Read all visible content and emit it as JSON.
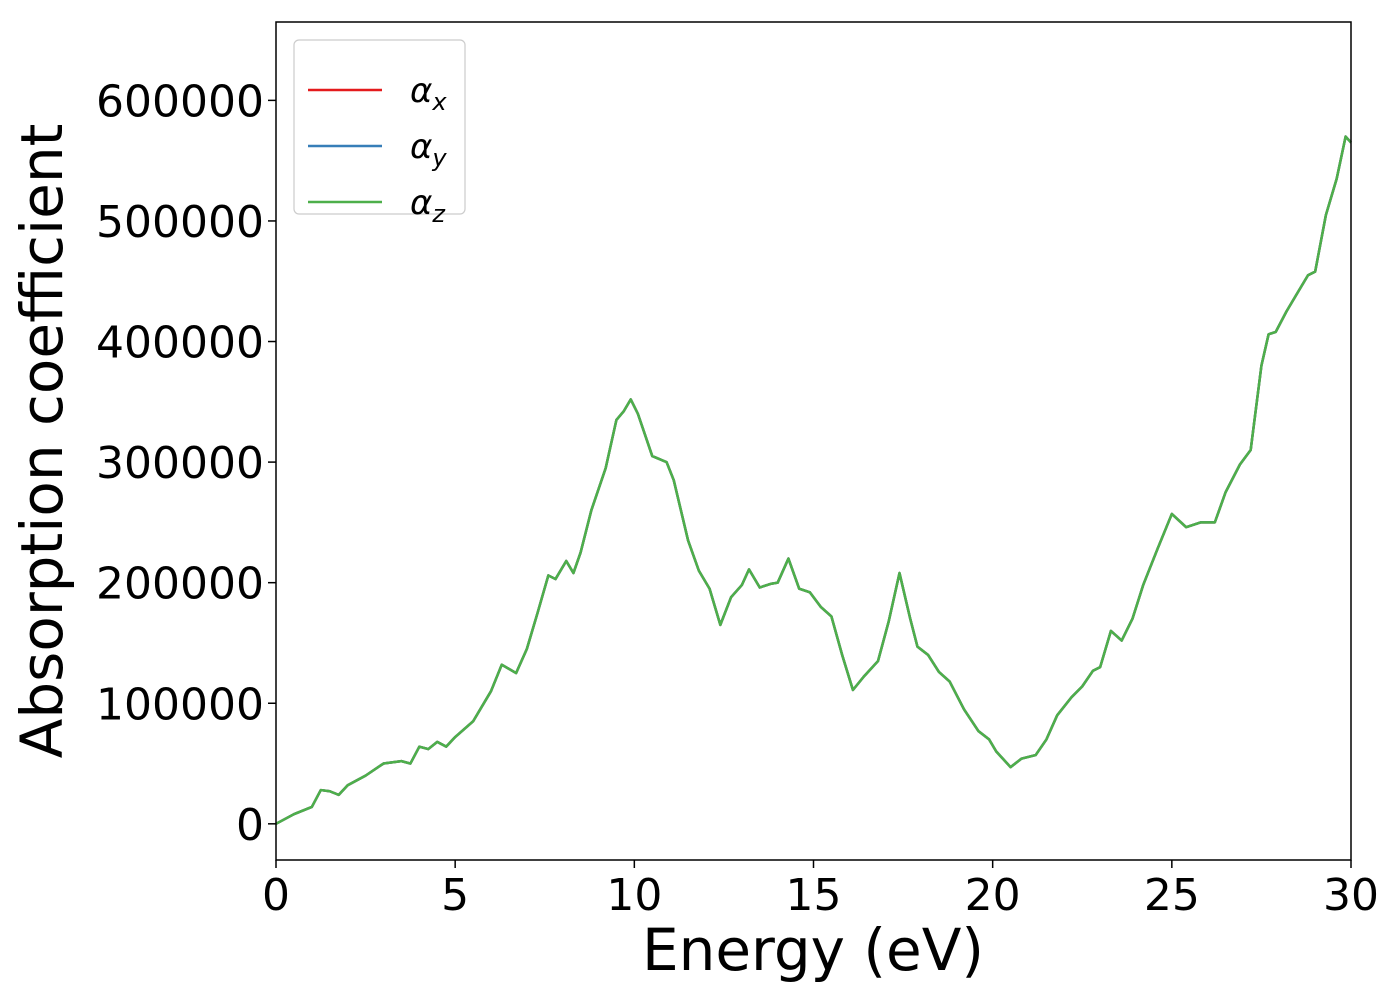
{
  "chart_data": {
    "type": "line",
    "xlabel": "Energy (eV)",
    "ylabel": "Absorption coefficient",
    "x": [
      0,
      0.5,
      1,
      1.25,
      1.5,
      1.75,
      2,
      2.5,
      3,
      3.5,
      3.75,
      4,
      4.25,
      4.5,
      4.75,
      5,
      5.5,
      6,
      6.3,
      6.7,
      7,
      7.3,
      7.6,
      7.8,
      8.1,
      8.3,
      8.5,
      8.8,
      9.2,
      9.5,
      9.7,
      9.9,
      10.1,
      10.5,
      10.9,
      11.1,
      11.5,
      11.8,
      12.1,
      12.4,
      12.7,
      13,
      13.2,
      13.5,
      13.8,
      14,
      14.3,
      14.6,
      14.9,
      15.2,
      15.5,
      15.8,
      16.1,
      16.4,
      16.8,
      17.1,
      17.4,
      17.7,
      17.9,
      18.2,
      18.5,
      18.8,
      19.2,
      19.6,
      19.9,
      20.1,
      20.5,
      20.8,
      21.2,
      21.5,
      21.8,
      22.2,
      22.5,
      22.8,
      23,
      23.3,
      23.6,
      23.9,
      24.2,
      24.6,
      25,
      25.4,
      25.8,
      26.2,
      26.5,
      26.9,
      27.2,
      27.5,
      27.7,
      27.9,
      28.2,
      28.5,
      28.8,
      29,
      29.3,
      29.6,
      29.85,
      30
    ],
    "series": [
      {
        "name": "αx",
        "color": "#e41a1c",
        "values": [
          0,
          8000,
          14000,
          28000,
          27000,
          24000,
          32000,
          40000,
          50000,
          52000,
          50000,
          64000,
          62000,
          68000,
          64000,
          72000,
          85000,
          110000,
          132000,
          125000,
          145000,
          175000,
          206000,
          203000,
          218000,
          208000,
          225000,
          260000,
          295000,
          335000,
          342000,
          352000,
          340000,
          305000,
          300000,
          285000,
          235000,
          210000,
          195000,
          165000,
          188000,
          198000,
          211000,
          196000,
          199000,
          200000,
          220000,
          195000,
          192000,
          180000,
          172000,
          140000,
          111000,
          122000,
          135000,
          168000,
          208000,
          170000,
          147000,
          140000,
          126000,
          118000,
          95000,
          77000,
          70000,
          60000,
          47000,
          54000,
          57000,
          70000,
          90000,
          105000,
          114000,
          127000,
          130000,
          160000,
          152000,
          170000,
          198000,
          228000,
          257000,
          246000,
          250000,
          250000,
          275000,
          298000,
          310000,
          380000,
          406000,
          408000,
          425000,
          440000,
          455000,
          458000,
          505000,
          535000,
          570000,
          565000
        ]
      },
      {
        "name": "αy",
        "color": "#377eb8",
        "values": [
          0,
          8000,
          14000,
          28000,
          27000,
          24000,
          32000,
          40000,
          50000,
          52000,
          50000,
          64000,
          62000,
          68000,
          64000,
          72000,
          85000,
          110000,
          132000,
          125000,
          145000,
          175000,
          206000,
          203000,
          218000,
          208000,
          225000,
          260000,
          295000,
          335000,
          342000,
          352000,
          340000,
          305000,
          300000,
          285000,
          235000,
          210000,
          195000,
          165000,
          188000,
          198000,
          211000,
          196000,
          199000,
          200000,
          220000,
          195000,
          192000,
          180000,
          172000,
          140000,
          111000,
          122000,
          135000,
          168000,
          208000,
          170000,
          147000,
          140000,
          126000,
          118000,
          95000,
          77000,
          70000,
          60000,
          47000,
          54000,
          57000,
          70000,
          90000,
          105000,
          114000,
          127000,
          130000,
          160000,
          152000,
          170000,
          198000,
          228000,
          257000,
          246000,
          250000,
          250000,
          275000,
          298000,
          310000,
          380000,
          406000,
          408000,
          425000,
          440000,
          455000,
          458000,
          505000,
          535000,
          570000,
          565000
        ]
      },
      {
        "name": "αz",
        "color": "#4daf4a",
        "values": [
          0,
          8000,
          14000,
          28000,
          27000,
          24000,
          32000,
          40000,
          50000,
          52000,
          50000,
          64000,
          62000,
          68000,
          64000,
          72000,
          85000,
          110000,
          132000,
          125000,
          145000,
          175000,
          206000,
          203000,
          218000,
          208000,
          225000,
          260000,
          295000,
          335000,
          342000,
          352000,
          340000,
          305000,
          300000,
          285000,
          235000,
          210000,
          195000,
          165000,
          188000,
          198000,
          211000,
          196000,
          199000,
          200000,
          220000,
          195000,
          192000,
          180000,
          172000,
          140000,
          111000,
          122000,
          135000,
          168000,
          208000,
          170000,
          147000,
          140000,
          126000,
          118000,
          95000,
          77000,
          70000,
          60000,
          47000,
          54000,
          57000,
          70000,
          90000,
          105000,
          114000,
          127000,
          130000,
          160000,
          152000,
          170000,
          198000,
          228000,
          257000,
          246000,
          250000,
          250000,
          275000,
          298000,
          310000,
          380000,
          406000,
          408000,
          425000,
          440000,
          455000,
          458000,
          505000,
          535000,
          570000,
          565000
        ]
      }
    ],
    "xlim": [
      0,
      30
    ],
    "xticks": [
      0,
      5,
      10,
      15,
      20,
      25,
      30
    ],
    "ylim": [
      -30000,
      665000
    ],
    "yticks": [
      0,
      100000,
      200000,
      300000,
      400000,
      500000,
      600000
    ],
    "legend": "upper left"
  }
}
